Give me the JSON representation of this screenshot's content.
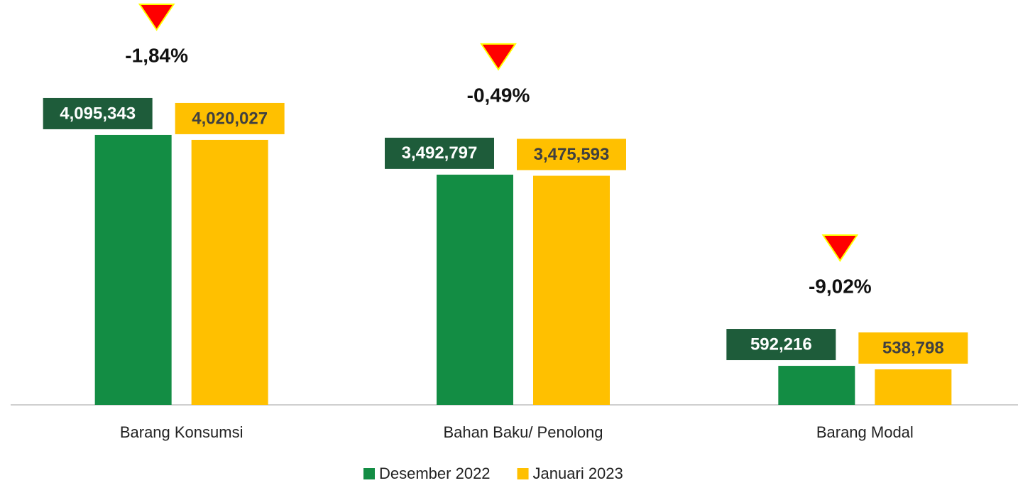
{
  "chart_data": {
    "type": "bar",
    "categories": [
      "Barang Konsumsi",
      "Bahan Baku/ Penolong",
      "Barang Modal"
    ],
    "series": [
      {
        "name": "Desember 2022",
        "color": "#138d44",
        "label_color": "#1e5c3a",
        "values": [
          4095343,
          3492797,
          592216
        ],
        "value_labels": [
          "4,095,343",
          "3,492,797",
          "592,216"
        ]
      },
      {
        "name": "Januari 2023",
        "color": "#ffc000",
        "label_color": "#ffc000",
        "values": [
          4020027,
          3475593,
          538798
        ],
        "value_labels": [
          "4,020,027",
          "3,475,593",
          "538,798"
        ]
      }
    ],
    "annotations": [
      "-1,84%",
      "-0,49%",
      "-9,02%"
    ],
    "ylim": [
      0,
      5000000
    ]
  }
}
